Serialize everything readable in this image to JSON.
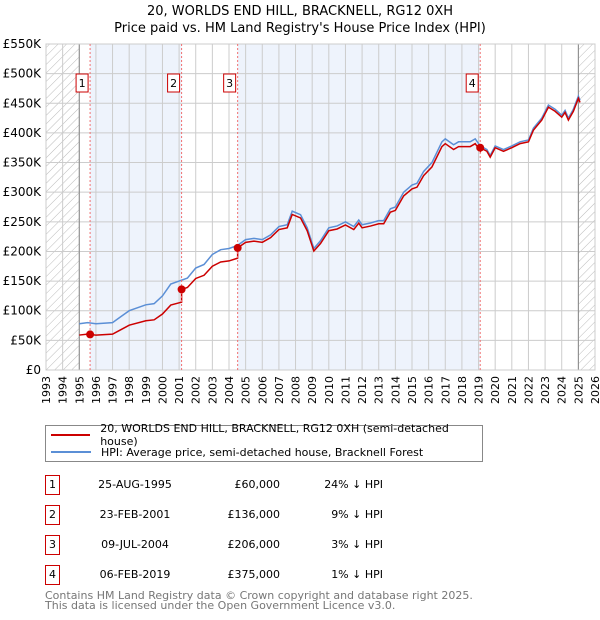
{
  "chart_data": {
    "type": "line",
    "title": "20, WORLDS END HILL, BRACKNELL, RG12 0XH",
    "subtitle": "Price paid vs. HM Land Registry's House Price Index (HPI)",
    "xlim": [
      1993,
      2026
    ],
    "ylim": [
      0,
      550000
    ],
    "x_ticks": [
      "1993",
      "1994",
      "1995",
      "1996",
      "1997",
      "1998",
      "1999",
      "2000",
      "2001",
      "2002",
      "2003",
      "2004",
      "2005",
      "2006",
      "2007",
      "2008",
      "2009",
      "2010",
      "2011",
      "2012",
      "2013",
      "2014",
      "2015",
      "2016",
      "2017",
      "2018",
      "2019",
      "2020",
      "2021",
      "2022",
      "2023",
      "2024",
      "2025",
      "2026"
    ],
    "y_ticks": [
      {
        "v": 0,
        "label": "£0"
      },
      {
        "v": 50000,
        "label": "£50K"
      },
      {
        "v": 100000,
        "label": "£100K"
      },
      {
        "v": 150000,
        "label": "£150K"
      },
      {
        "v": 200000,
        "label": "£200K"
      },
      {
        "v": 250000,
        "label": "£250K"
      },
      {
        "v": 300000,
        "label": "£300K"
      },
      {
        "v": 350000,
        "label": "£350K"
      },
      {
        "v": 400000,
        "label": "£400K"
      },
      {
        "v": 450000,
        "label": "£450K"
      },
      {
        "v": 500000,
        "label": "£500K"
      },
      {
        "v": 550000,
        "label": "£550K"
      }
    ],
    "data_range": [
      1995.0,
      2025.0
    ],
    "series": [
      {
        "name": "20, WORLDS END HILL, BRACKNELL, RG12 0XH (semi-detached house)",
        "color": "#cc0000",
        "derived_from_hpi_and_sales": true
      },
      {
        "name": "HPI: Average price, semi-detached house, Bracknell Forest",
        "color": "#5b8fd6",
        "points": [
          [
            1995.0,
            78000
          ],
          [
            1995.5,
            80000
          ],
          [
            1996,
            78000
          ],
          [
            1997,
            80000
          ],
          [
            1997.5,
            90000
          ],
          [
            1998,
            100000
          ],
          [
            1999,
            110000
          ],
          [
            1999.5,
            112000
          ],
          [
            2000,
            125000
          ],
          [
            2000.5,
            145000
          ],
          [
            2001,
            150000
          ],
          [
            2001.5,
            155000
          ],
          [
            2002,
            172000
          ],
          [
            2002.5,
            178000
          ],
          [
            2003,
            195000
          ],
          [
            2003.5,
            203000
          ],
          [
            2004,
            205000
          ],
          [
            2004.5,
            210000
          ],
          [
            2005,
            220000
          ],
          [
            2005.5,
            222000
          ],
          [
            2006,
            220000
          ],
          [
            2006.5,
            228000
          ],
          [
            2007,
            242000
          ],
          [
            2007.5,
            245000
          ],
          [
            2007.8,
            268000
          ],
          [
            2008.3,
            262000
          ],
          [
            2008.7,
            240000
          ],
          [
            2009.1,
            205000
          ],
          [
            2009.5,
            218000
          ],
          [
            2010,
            240000
          ],
          [
            2010.5,
            243000
          ],
          [
            2011,
            250000
          ],
          [
            2011.5,
            242000
          ],
          [
            2011.8,
            253000
          ],
          [
            2012,
            245000
          ],
          [
            2012.5,
            248000
          ],
          [
            2013,
            252000
          ],
          [
            2013.3,
            252000
          ],
          [
            2013.7,
            272000
          ],
          [
            2014,
            275000
          ],
          [
            2014.5,
            300000
          ],
          [
            2015,
            312000
          ],
          [
            2015.3,
            315000
          ],
          [
            2015.7,
            335000
          ],
          [
            2016.2,
            350000
          ],
          [
            2016.8,
            385000
          ],
          [
            2017,
            390000
          ],
          [
            2017.5,
            380000
          ],
          [
            2017.8,
            385000
          ],
          [
            2018.5,
            385000
          ],
          [
            2018.8,
            390000
          ],
          [
            2019.1,
            378000
          ],
          [
            2019.5,
            372000
          ],
          [
            2019.7,
            362000
          ],
          [
            2020,
            378000
          ],
          [
            2020.5,
            372000
          ],
          [
            2021,
            378000
          ],
          [
            2021.5,
            385000
          ],
          [
            2022,
            388000
          ],
          [
            2022.3,
            408000
          ],
          [
            2022.8,
            425000
          ],
          [
            2023.2,
            447000
          ],
          [
            2023.6,
            440000
          ],
          [
            2024,
            430000
          ],
          [
            2024.2,
            438000
          ],
          [
            2024.4,
            425000
          ],
          [
            2024.7,
            440000
          ],
          [
            2025,
            462000
          ],
          [
            2025.1,
            455000
          ]
        ]
      }
    ],
    "sales": [
      {
        "n": "1",
        "x": 1995.65,
        "price": 60000
      },
      {
        "n": "2",
        "x": 2001.15,
        "price": 136000
      },
      {
        "n": "3",
        "x": 2004.52,
        "price": 206000
      },
      {
        "n": "4",
        "x": 2019.1,
        "price": 375000
      }
    ]
  },
  "legend": {
    "property": "20, WORLDS END HILL, BRACKNELL, RG12 0XH (semi-detached house)",
    "hpi": "HPI: Average price, semi-detached house, Bracknell Forest"
  },
  "transactions": [
    {
      "n": "1",
      "date": "25-AUG-1995",
      "price": "£60,000",
      "hpi": "24% ↓ HPI"
    },
    {
      "n": "2",
      "date": "23-FEB-2001",
      "price": "£136,000",
      "hpi": "9% ↓ HPI"
    },
    {
      "n": "3",
      "date": "09-JUL-2004",
      "price": "£206,000",
      "hpi": "3% ↓ HPI"
    },
    {
      "n": "4",
      "date": "06-FEB-2019",
      "price": "£375,000",
      "hpi": "1% ↓ HPI"
    }
  ],
  "footer": {
    "line1": "Contains HM Land Registry data © Crown copyright and database right 2025.",
    "line2": "This data is licensed under the Open Government Licence v3.0."
  }
}
